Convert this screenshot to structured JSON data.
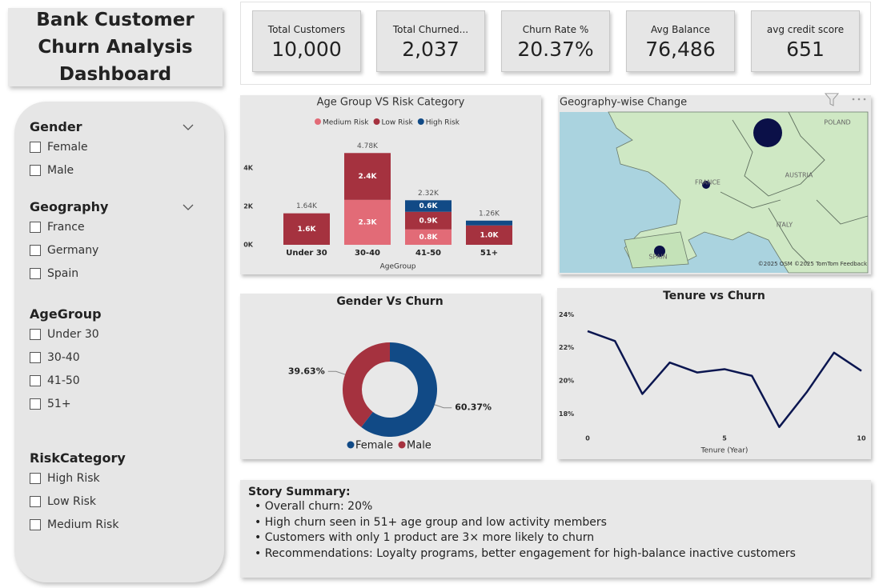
{
  "header": {
    "title": "Bank Customer Churn Analysis Dashboard"
  },
  "kpis": [
    {
      "label": "Total Customers",
      "value": "10,000"
    },
    {
      "label": "Total Churned...",
      "value": "2,037"
    },
    {
      "label": "Churn Rate %",
      "value": "20.37%"
    },
    {
      "label": "Avg Balance",
      "value": "76,486"
    },
    {
      "label": "avg credit score",
      "value": "651"
    }
  ],
  "filters": [
    {
      "title": "Gender",
      "options": [
        "Female",
        "Male"
      ]
    },
    {
      "title": "Geography",
      "options": [
        "France",
        "Germany",
        "Spain"
      ]
    },
    {
      "title": "AgeGroup",
      "options": [
        "Under 30",
        "30-40",
        "41-50",
        "51+"
      ]
    },
    {
      "title": "RiskCategory",
      "options": [
        "High Risk",
        "Low Risk",
        "Medium Risk"
      ]
    }
  ],
  "chart_data": [
    {
      "type": "bar",
      "stacked": true,
      "title": "Age Group VS Risk Category",
      "x_label": "AgeGroup",
      "categories": [
        "Under 30",
        "30-40",
        "41-50",
        "51+"
      ],
      "series": [
        {
          "name": "Medium Risk",
          "color": "#e26b77",
          "values": [
            null,
            2340,
            800,
            null
          ],
          "value_labels": [
            null,
            "2.3K",
            "0.8K",
            null
          ]
        },
        {
          "name": "Low Risk",
          "color": "#a5323f",
          "values": [
            1640,
            2440,
            920,
            1010
          ],
          "value_labels": [
            "1.6K",
            "2.4K",
            "0.9K",
            "1.0K"
          ]
        },
        {
          "name": "High Risk",
          "color": "#114a86",
          "values": [
            null,
            null,
            600,
            250
          ],
          "value_labels": [
            null,
            null,
            "0.6K",
            null
          ]
        }
      ],
      "total_labels": [
        "1.64K",
        "4.78K",
        "2.32K",
        "1.26K"
      ],
      "ylim": [
        0,
        5000
      ],
      "yticks": [
        {
          "value": 0,
          "label": "0K"
        },
        {
          "value": 2000,
          "label": "2K"
        },
        {
          "value": 4000,
          "label": "4K"
        }
      ]
    },
    {
      "type": "pie",
      "donut": true,
      "title": "Gender Vs Churn",
      "categories": [
        "Female",
        "Male"
      ],
      "values": [
        60.37,
        39.63
      ],
      "value_labels": [
        "60.37%",
        "39.63%"
      ],
      "colors": [
        "#114a86",
        "#a5323f"
      ]
    },
    {
      "type": "line",
      "title": "Tenure vs Churn",
      "x_label": "Tenure (Year)",
      "x": [
        0,
        1,
        2,
        3,
        4,
        5,
        6,
        7,
        8,
        9,
        10
      ],
      "values": [
        23.0,
        22.4,
        19.2,
        21.1,
        20.5,
        20.7,
        20.3,
        17.2,
        19.3,
        21.7,
        20.6
      ],
      "color": "#0b1650",
      "xlim": [
        0,
        10
      ],
      "xticks": [
        0,
        5,
        10
      ],
      "ylim": [
        16.9,
        24.4
      ],
      "yticks": [
        {
          "value": 18,
          "label": "18%"
        },
        {
          "value": 20,
          "label": "20%"
        },
        {
          "value": 22,
          "label": "22%"
        },
        {
          "value": 24,
          "label": "24%"
        }
      ]
    }
  ],
  "map": {
    "title": "Geography-wise Change",
    "labels": [
      "POLAND",
      "FRANCE",
      "AUSTRIA",
      "ITALY",
      "SPAIN"
    ],
    "attribution": "©2025 OSM ©2025 TomTom Feedback"
  },
  "summary": {
    "title": "Story Summary:",
    "items": [
      "• Overall churn: 20%",
      "• High churn seen in 51+ age group and low activity members",
      "• Customers with only 1 product are 3× more likely to churn",
      "• Recommendations: Loyalty programs, better engagement for high-balance inactive customers"
    ]
  }
}
